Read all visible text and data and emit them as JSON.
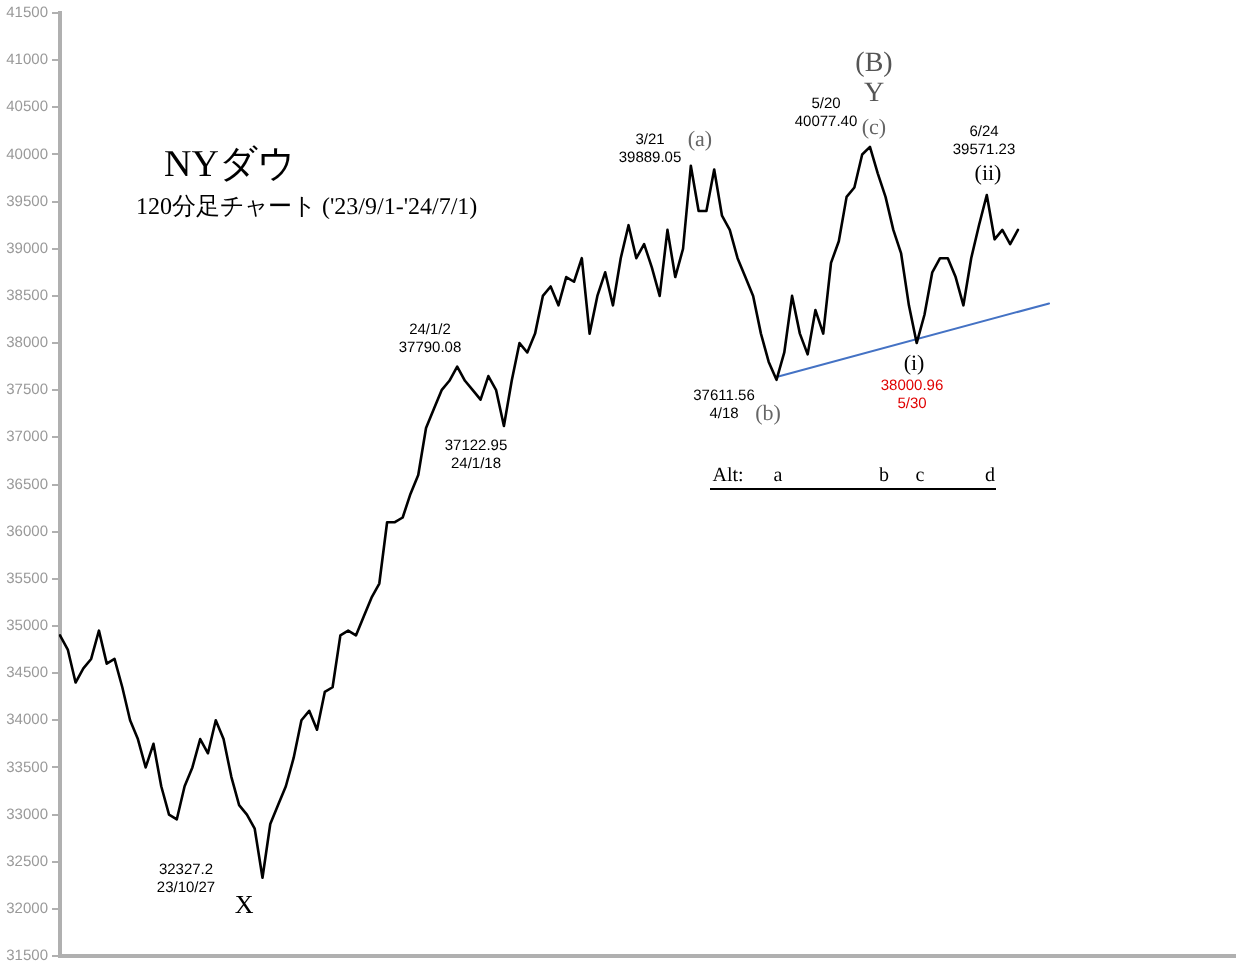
{
  "chart_data": {
    "type": "line",
    "title": "NYダウ",
    "subtitle": "120分足チャート ('23/9/1-'24/7/1)",
    "categories": [
      null,
      null,
      null,
      null,
      null,
      null,
      null,
      null,
      null,
      null,
      null,
      null,
      null,
      null,
      null,
      null,
      null,
      null,
      null,
      null,
      null,
      null,
      null,
      null,
      null,
      null,
      null,
      null,
      null,
      null,
      null,
      null,
      null,
      null,
      null,
      null,
      null,
      null,
      null,
      null,
      null,
      null,
      null,
      null,
      null,
      null,
      null,
      null,
      null,
      null,
      null,
      null,
      null,
      null,
      null,
      null,
      null,
      null,
      null,
      null,
      null,
      null,
      null,
      null,
      null,
      null,
      null,
      null,
      null,
      null,
      null,
      null,
      null,
      null,
      null,
      null,
      null,
      null,
      null,
      null,
      null,
      null,
      null,
      null,
      null,
      null,
      null,
      null,
      null,
      null,
      null,
      null,
      null,
      null,
      null,
      null,
      null,
      null,
      null,
      null,
      null,
      null,
      null,
      null,
      null,
      null,
      null,
      null,
      null,
      null,
      null,
      null,
      null,
      null,
      null,
      null,
      null,
      null,
      null,
      null,
      null,
      null,
      null,
      null,
      null,
      null,
      null,
      null,
      null,
      null,
      null,
      null,
      null,
      null,
      null,
      null,
      null,
      null,
      null,
      null,
      null,
      null,
      null,
      null,
      null,
      null,
      null,
      null,
      null,
      null,
      null,
      null
    ],
    "series": [
      {
        "color": "#000000",
        "values": [
          34900,
          34750,
          34400,
          34550,
          34650,
          34950,
          34600,
          34650,
          34350,
          34000,
          33800,
          33500,
          33750,
          33300,
          33000,
          32950,
          33300,
          33500,
          33800,
          33650,
          34000,
          33800,
          33400,
          33100,
          33000,
          32850,
          32330,
          32900,
          33100,
          33300,
          33600,
          34000,
          34100,
          33900,
          34300,
          34350,
          34900,
          34950,
          34900,
          35100,
          35300,
          35450,
          36100,
          36100,
          36150,
          36400,
          36600,
          37100,
          37300,
          37500,
          37600,
          37750,
          37600,
          37500,
          37400,
          37650,
          37500,
          37120,
          37600,
          38000,
          37900,
          38100,
          38500,
          38600,
          38400,
          38700,
          38650,
          38900,
          38100,
          38500,
          38750,
          38400,
          38900,
          39250,
          38900,
          39050,
          38800,
          38500,
          39200,
          38700,
          39000,
          39880,
          39400,
          39400,
          39840,
          39350,
          39200,
          38900,
          38700,
          38500,
          38100,
          37800,
          37610,
          37900,
          38500,
          38100,
          37880,
          38350,
          38100,
          38850,
          39080,
          39550,
          39650,
          40000,
          40080,
          39800,
          39550,
          39200,
          38950,
          38400,
          38000,
          38300,
          38750,
          38900,
          38900,
          38700,
          38400,
          38900,
          39250,
          39570,
          39100,
          39200,
          39050,
          39200,
          null,
          null,
          null,
          null,
          null,
          null,
          null,
          null,
          null,
          null,
          null,
          null,
          null,
          null,
          null,
          null,
          null,
          null,
          null,
          null,
          null,
          null,
          null,
          null,
          null,
          null,
          null,
          null
        ]
      },
      {
        "type": "line",
        "color": "#4472c4",
        "values": [
          null,
          null,
          null,
          null,
          null,
          null,
          null,
          null,
          null,
          null,
          null,
          null,
          null,
          null,
          null,
          null,
          null,
          null,
          null,
          null,
          null,
          null,
          null,
          null,
          null,
          null,
          null,
          null,
          null,
          null,
          null,
          null,
          null,
          null,
          null,
          null,
          null,
          null,
          null,
          null,
          null,
          null,
          null,
          null,
          null,
          null,
          null,
          null,
          null,
          null,
          null,
          null,
          null,
          null,
          null,
          null,
          null,
          null,
          null,
          null,
          null,
          null,
          null,
          null,
          null,
          null,
          null,
          null,
          null,
          null,
          null,
          null,
          null,
          null,
          null,
          null,
          null,
          null,
          null,
          null,
          null,
          null,
          null,
          null,
          null,
          null,
          null,
          null,
          null,
          null,
          null,
          null,
          37640,
          null,
          null,
          null,
          null,
          null,
          null,
          null,
          null,
          null,
          null,
          null,
          null,
          null,
          null,
          null,
          null,
          null,
          null,
          null,
          null,
          null,
          null,
          null,
          null,
          null,
          null,
          null,
          null,
          null,
          null,
          null,
          null,
          null,
          null,
          38420,
          null,
          null,
          null,
          null,
          null,
          null,
          null,
          null,
          null,
          null,
          null,
          null,
          null,
          null,
          null,
          null,
          null,
          null,
          null,
          null,
          null,
          null,
          null,
          null
        ]
      }
    ],
    "ylim": [
      31500,
      41500
    ],
    "yticks": [
      31500,
      32000,
      32500,
      33000,
      33500,
      34000,
      34500,
      35000,
      35500,
      36000,
      36500,
      37000,
      37500,
      38000,
      38500,
      39000,
      39500,
      40000,
      40500,
      41000,
      41500
    ],
    "tick_labels": "y",
    "legend": false,
    "annotations": [
      "24/1/2\n37790.08",
      "37122.95\n24/1/18",
      "3/21\n39889.05",
      "(a)",
      "(B)",
      "Y",
      "5/20\n40077.40",
      "(c)",
      "6/24\n39571.23",
      "(ii)",
      "37611.56\n4/18",
      "(b)",
      "(i)",
      "38000.96\n5/30",
      "32327.2\n23/10/27",
      "X",
      "Alt:",
      "a",
      "b",
      "c",
      "d"
    ]
  }
}
